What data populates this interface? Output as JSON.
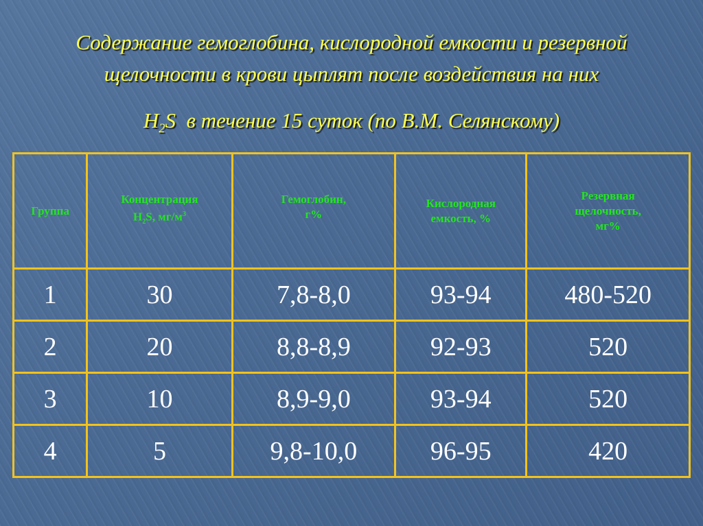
{
  "title": {
    "line1": "Содержание гемоглобина, кислородной емкости и резервной",
    "line2": "щелочности в крови цыплят после воздействия на них",
    "line3_pre": "H",
    "line3_sub": "2",
    "line3_post": "S  в течение 15 суток (по В.М. Селянскому)"
  },
  "colors": {
    "title": "#ffff4d",
    "header_text": "#22e61c",
    "grid": "#f2c21e",
    "cell_text": "#ffffff",
    "background": "#4b6b95"
  },
  "table": {
    "headers": [
      {
        "text": "Группа"
      },
      {
        "l1": "Концентрация",
        "pre": "H",
        "sub": "2",
        "mid": "S, мг/м",
        "sup": "3"
      },
      {
        "l1": "Гемоглобин,",
        "l2": "г%"
      },
      {
        "l1": "Кислородная",
        "l2": "емкость, %"
      },
      {
        "l1": "Резервная",
        "l2": "щелочность,",
        "l3": "мг%"
      }
    ],
    "rows": [
      [
        "1",
        "30",
        "7,8-8,0",
        "93-94",
        "480-520"
      ],
      [
        "2",
        "20",
        "8,8-8,9",
        "92-93",
        "520"
      ],
      [
        "3",
        "10",
        "8,9-9,0",
        "93-94",
        "520"
      ],
      [
        "4",
        "5",
        "9,8-10,0",
        "96-95",
        "420"
      ]
    ]
  }
}
